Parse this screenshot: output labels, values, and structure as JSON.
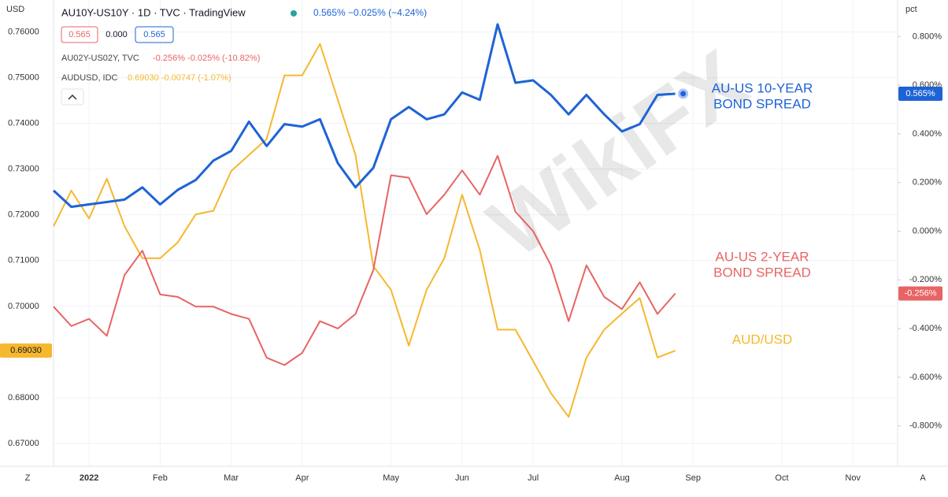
{
  "chart_data": {
    "type": "line",
    "title": "AU10Y-US10Y · 1D · TVC · TradingView",
    "header_boxes": [
      "0.565",
      "0.000",
      "0.565"
    ],
    "y_unit": "USD",
    "y2_unit": "pct",
    "watermark": "WikiFX",
    "corner_buttons": [
      "Z",
      "A"
    ],
    "categories": [
      null,
      null,
      "2022",
      null,
      null,
      null,
      "Feb",
      null,
      null,
      null,
      "Mar",
      null,
      null,
      null,
      "Apr",
      null,
      null,
      null,
      null,
      "May",
      null,
      null,
      null,
      "Jun",
      null,
      null,
      null,
      "Jul",
      null,
      null,
      null,
      null,
      "Aug",
      null,
      null,
      null,
      "Sep",
      null,
      null,
      null,
      null,
      "Oct",
      null,
      null,
      null,
      "Nov",
      null,
      null
    ],
    "series": [
      {
        "name": "AU10Y-US10Y · 1D · TVC · TradingView",
        "legend_value": "0.565% −0.025% (−4.24%)",
        "last_label": "0.565%",
        "color": "#1e63d6",
        "axis": "y2",
        "values": [
          0.167,
          0.1,
          0.11,
          0.12,
          0.13,
          0.18,
          0.11,
          0.17,
          0.21,
          0.29,
          0.33,
          0.45,
          0.35,
          0.44,
          0.43,
          0.46,
          0.28,
          0.18,
          0.26,
          0.46,
          0.51,
          0.46,
          0.48,
          0.57,
          0.54,
          0.85,
          0.61,
          0.62,
          0.56,
          0.48,
          0.56,
          0.48,
          0.41,
          0.44,
          0.56,
          0.565,
          null,
          null,
          null,
          null,
          null,
          null,
          null,
          null,
          null,
          null,
          null,
          null
        ]
      },
      {
        "name": "AU02Y-US02Y, TVC",
        "legend_value": "-0.256% -0.025% (-10.82%)",
        "last_label": "-0.256%",
        "color": "#e86464",
        "axis": "y2",
        "values": [
          -0.31,
          -0.39,
          -0.36,
          -0.43,
          -0.18,
          -0.08,
          -0.26,
          -0.27,
          -0.31,
          -0.31,
          -0.34,
          -0.36,
          -0.52,
          -0.55,
          -0.5,
          -0.37,
          -0.4,
          -0.34,
          -0.16,
          0.23,
          0.22,
          0.07,
          0.15,
          0.25,
          0.15,
          0.31,
          0.08,
          0.0,
          -0.14,
          -0.37,
          -0.14,
          -0.27,
          -0.32,
          -0.21,
          -0.34,
          -0.256,
          null,
          null,
          null,
          null,
          null,
          null,
          null,
          null,
          null,
          null,
          null,
          null
        ]
      },
      {
        "name": "AUDUSD, IDC",
        "legend_value": "0.69030 -0.00747 (-1.07%)",
        "last_label": "0.69030",
        "color": "#f5b82e",
        "axis": "y",
        "values": [
          0.7175,
          0.7253,
          0.7192,
          0.7279,
          0.7175,
          0.7105,
          0.7105,
          0.714,
          0.7201,
          0.7209,
          0.7296,
          0.7331,
          0.7366,
          0.7505,
          0.7505,
          0.7574,
          0.7452,
          0.7331,
          0.7088,
          0.7036,
          0.6914,
          0.7036,
          0.7105,
          0.7244,
          0.7123,
          0.6949,
          0.6949,
          0.688,
          0.681,
          0.6758,
          0.6888,
          0.6949,
          0.6984,
          0.7018,
          0.6888,
          0.6903,
          null,
          null,
          null,
          null,
          null,
          null,
          null,
          null,
          null,
          null,
          null,
          null
        ]
      }
    ],
    "annotations": [
      {
        "lines": [
          "AU-US 10-YEAR",
          "BOND SPREAD"
        ],
        "color": "#1e63d6"
      },
      {
        "lines": [
          "AU-US 2-YEAR",
          "BOND SPREAD"
        ],
        "color": "#e86464"
      },
      {
        "lines": [
          "AUD/USD"
        ],
        "color": "#f5b82e"
      }
    ],
    "ylim": [
      0.665,
      0.767
    ],
    "yticks": [
      {
        "value": 0.76,
        "label": "0.76000"
      },
      {
        "value": 0.75,
        "label": "0.75000"
      },
      {
        "value": 0.74,
        "label": "0.74000"
      },
      {
        "value": 0.73,
        "label": "0.73000"
      },
      {
        "value": 0.72,
        "label": "0.72000"
      },
      {
        "value": 0.71,
        "label": "0.71000"
      },
      {
        "value": 0.7,
        "label": "0.70000"
      },
      {
        "value": 0.68,
        "label": "0.68000"
      },
      {
        "value": 0.67,
        "label": "0.67000"
      }
    ],
    "y2lim": [
      -0.966,
      0.95
    ],
    "y2ticks": [
      {
        "value": 0.8,
        "label": "0.800%"
      },
      {
        "value": 0.6,
        "label": "0.600%"
      },
      {
        "value": 0.4,
        "label": "0.400%"
      },
      {
        "value": 0.2,
        "label": "0.200%"
      },
      {
        "value": 0,
        "label": "0.000%"
      },
      {
        "value": -0.2,
        "label": "-0.200%"
      },
      {
        "value": -0.4,
        "label": "-0.400%"
      },
      {
        "value": -0.6,
        "label": "-0.600%"
      },
      {
        "value": -0.8,
        "label": "-0.800%"
      }
    ],
    "grid": true
  }
}
